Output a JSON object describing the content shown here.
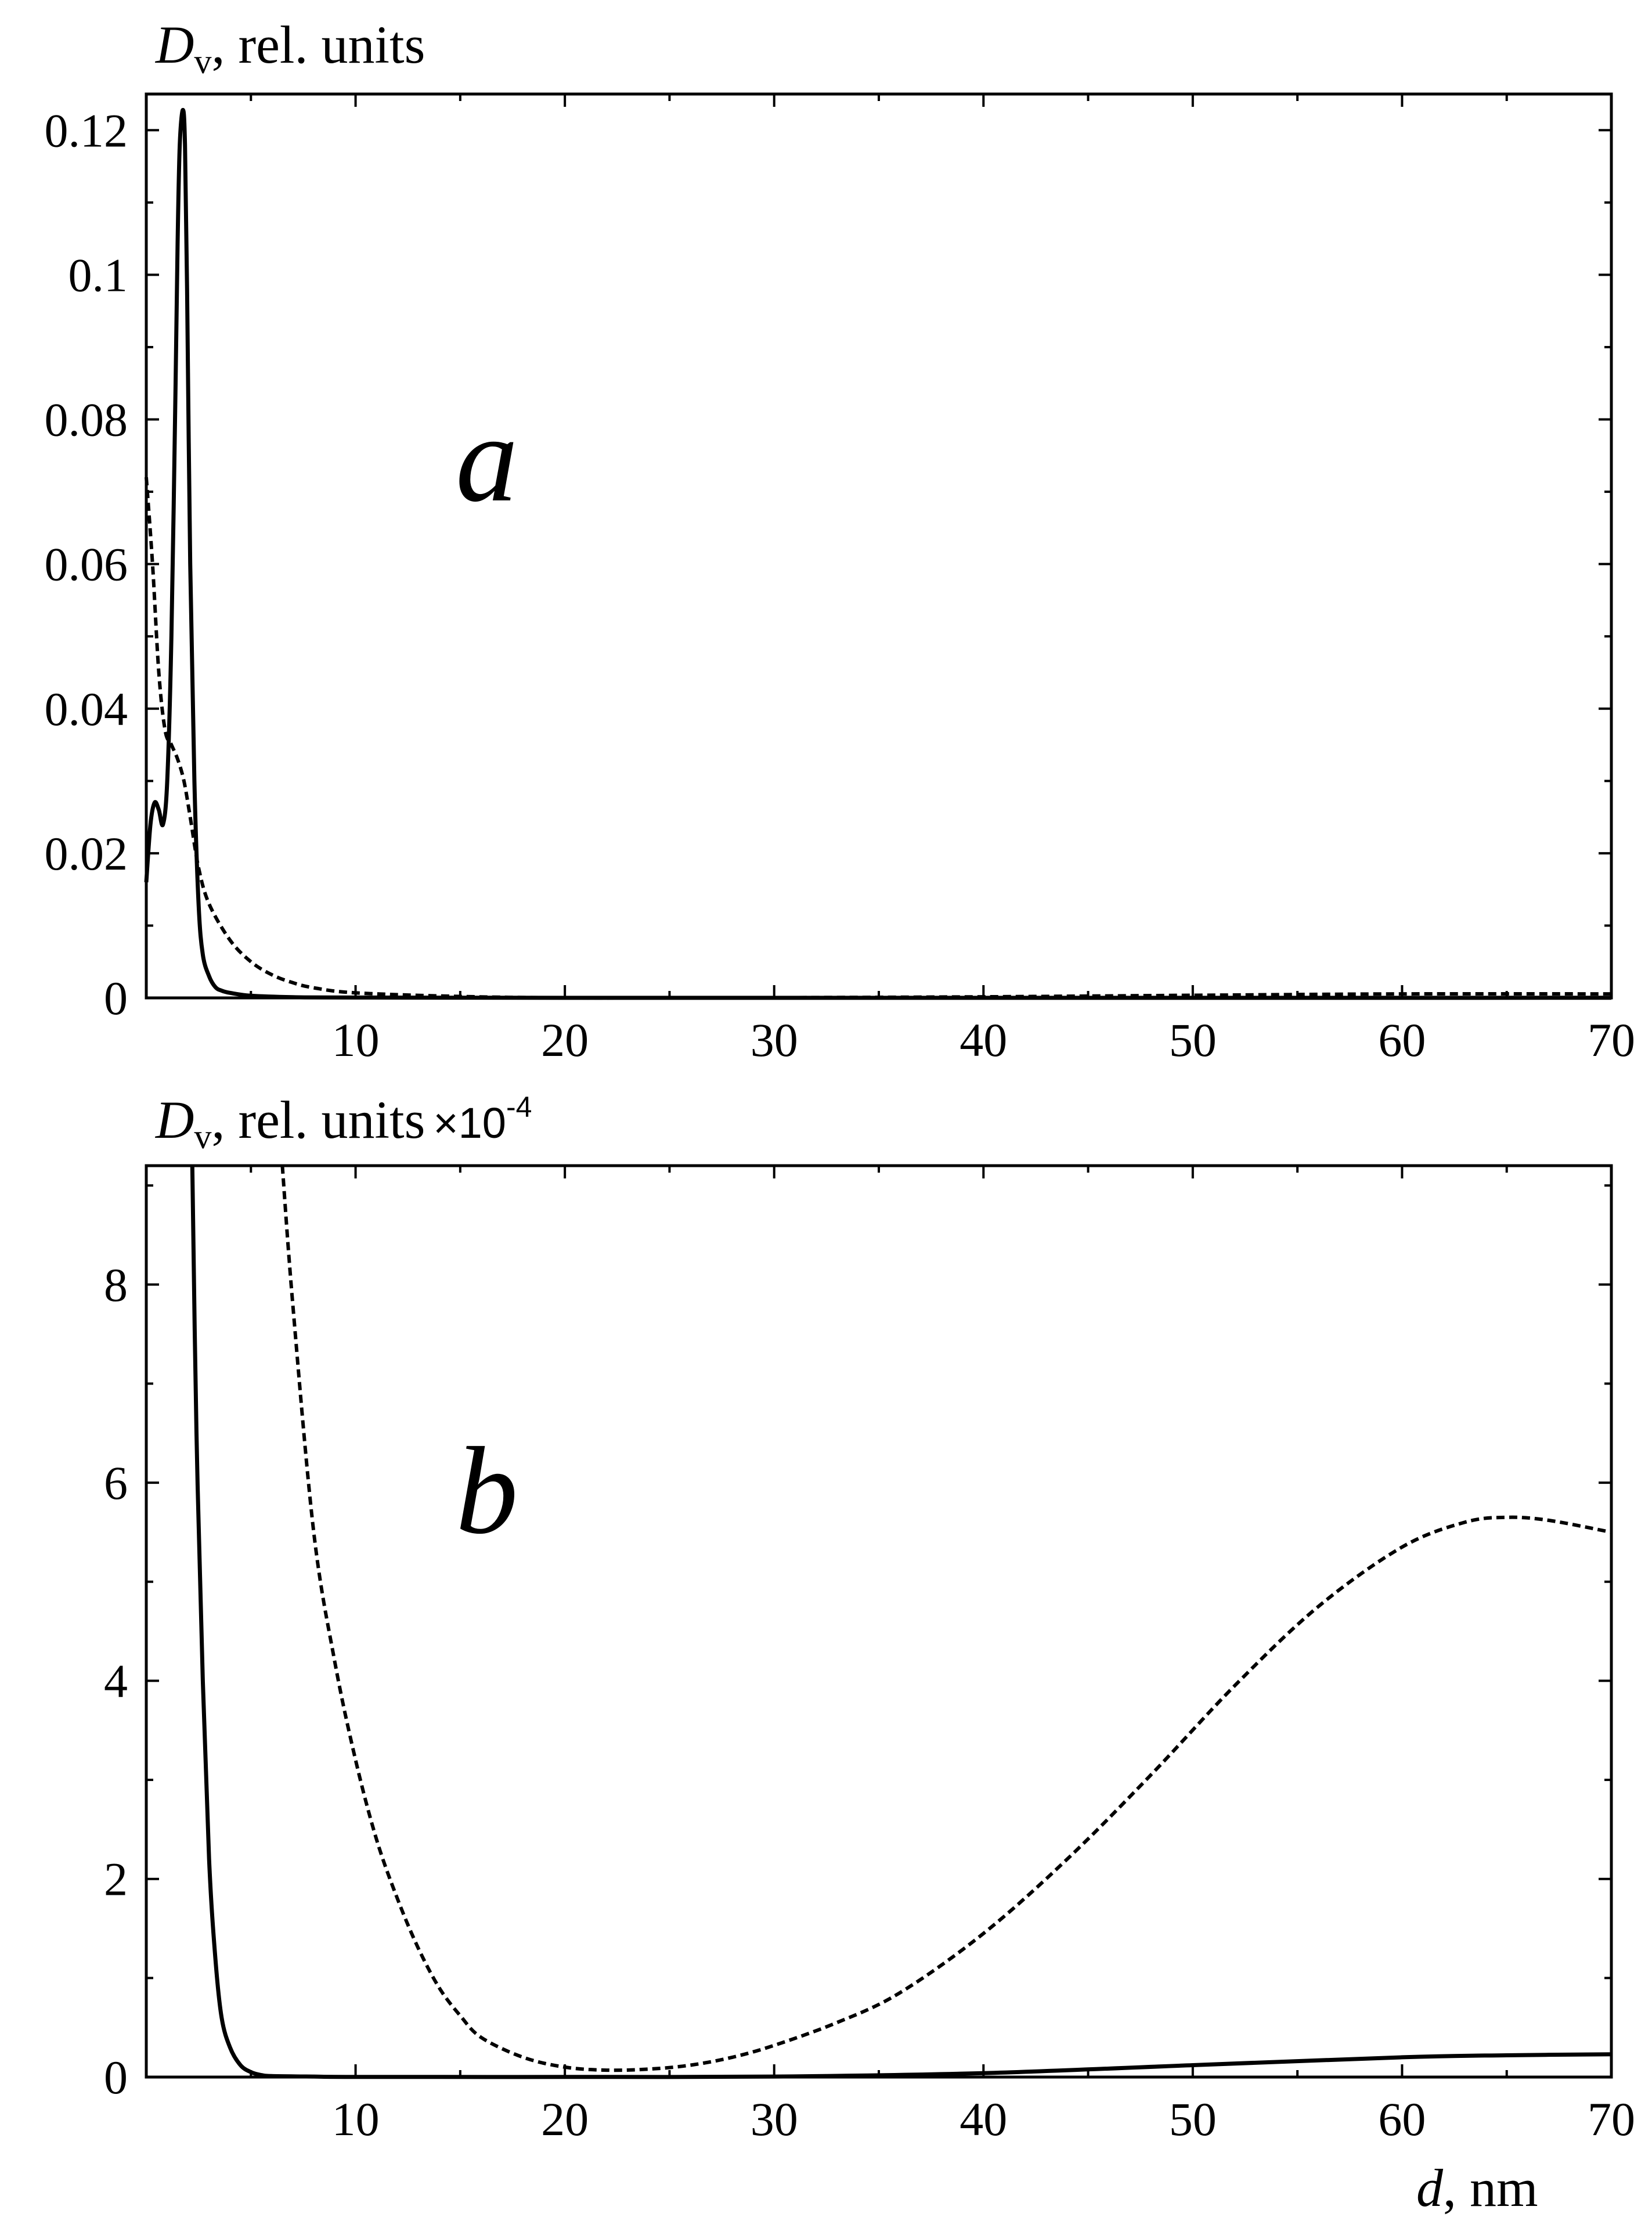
{
  "chart_data": [
    {
      "type": "line",
      "panel_label": "a",
      "ylabel_main": "D",
      "ylabel_sub": "v",
      "ylabel_rest": ", rel. units",
      "ylabel_multiplier": "",
      "xlabel_main": "",
      "xlabel_rest": "",
      "xlim": [
        0,
        70
      ],
      "ylim": [
        0,
        0.125
      ],
      "xticks": [
        10,
        20,
        30,
        40,
        50,
        60,
        70
      ],
      "yticks": [
        0,
        0.02,
        0.04,
        0.06,
        0.08,
        0.1,
        0.12
      ],
      "ytick_labels": [
        "0",
        "0.02",
        "0.04",
        "0.06",
        "0.08",
        "0.1",
        "0.12"
      ],
      "series": [
        {
          "style": "solid",
          "x": [
            0,
            0.2,
            0.4,
            0.6,
            0.8,
            1.0,
            1.2,
            1.4,
            1.5,
            1.6,
            1.75,
            1.85,
            1.95,
            2.1,
            2.3,
            2.5,
            2.7,
            3.0,
            3.3,
            3.6,
            4.0,
            5,
            7,
            10,
            20,
            40,
            70
          ],
          "y": [
            0.016,
            0.024,
            0.027,
            0.026,
            0.024,
            0.03,
            0.05,
            0.085,
            0.105,
            0.118,
            0.1228,
            0.118,
            0.098,
            0.06,
            0.03,
            0.013,
            0.006,
            0.003,
            0.0015,
            0.001,
            0.0007,
            0.0003,
            0.0001,
            5e-05,
            1e-05,
            5e-06,
            2e-05
          ]
        },
        {
          "style": "dashed",
          "x": [
            0,
            0.3,
            0.6,
            0.9,
            1.2,
            1.5,
            1.8,
            2.1,
            2.5,
            3.0,
            4.0,
            5.0,
            6.0,
            7.0,
            8.0,
            10,
            15,
            20,
            25,
            30,
            40,
            50,
            60,
            70
          ],
          "y": [
            0.072,
            0.06,
            0.045,
            0.037,
            0.035,
            0.033,
            0.03,
            0.025,
            0.018,
            0.013,
            0.008,
            0.005,
            0.0032,
            0.0021,
            0.0014,
            0.0007,
            0.0002,
            1e-05,
            8e-06,
            3e-05,
            0.00015,
            0.00036,
            0.00055,
            0.00055
          ]
        }
      ]
    },
    {
      "type": "line",
      "panel_label": "b",
      "ylabel_main": "D",
      "ylabel_sub": "v",
      "ylabel_rest": ", rel. units",
      "ylabel_multiplier": "×10",
      "ylabel_exponent": "-4",
      "xlabel_main": "d",
      "xlabel_rest": ", nm",
      "xlim": [
        0,
        70
      ],
      "ylim": [
        0,
        9.2
      ],
      "xticks": [
        10,
        20,
        30,
        40,
        50,
        60,
        70
      ],
      "yticks": [
        0,
        2,
        4,
        6,
        8
      ],
      "ytick_labels": [
        "0",
        "2",
        "4",
        "6",
        "8"
      ],
      "series": [
        {
          "style": "solid",
          "x": [
            2.2,
            2.4,
            2.7,
            3.0,
            3.3,
            3.6,
            4.0,
            4.5,
            5.0,
            5.5,
            6,
            8,
            10,
            20,
            30,
            40,
            50,
            60,
            65,
            70
          ],
          "y": [
            9.2,
            6.5,
            4.0,
            2.2,
            1.2,
            0.6,
            0.3,
            0.12,
            0.05,
            0.02,
            0.01,
            0.005,
            0.002,
            0.001,
            0.005,
            0.04,
            0.12,
            0.2,
            0.22,
            0.23
          ]
        },
        {
          "style": "dashed",
          "x": [
            6.5,
            7,
            8,
            9,
            10,
            11,
            12,
            13,
            14,
            15,
            16,
            18,
            20,
            22,
            24,
            26,
            28,
            30,
            33,
            36,
            40,
            44,
            48,
            52,
            56,
            60,
            63,
            65,
            67,
            70
          ],
          "y": [
            9.2,
            7.8,
            5.5,
            4.2,
            3.2,
            2.4,
            1.8,
            1.3,
            0.9,
            0.62,
            0.4,
            0.2,
            0.1,
            0.07,
            0.08,
            0.12,
            0.2,
            0.32,
            0.55,
            0.85,
            1.45,
            2.2,
            3.05,
            3.95,
            4.75,
            5.35,
            5.6,
            5.65,
            5.62,
            5.5
          ]
        }
      ]
    }
  ]
}
